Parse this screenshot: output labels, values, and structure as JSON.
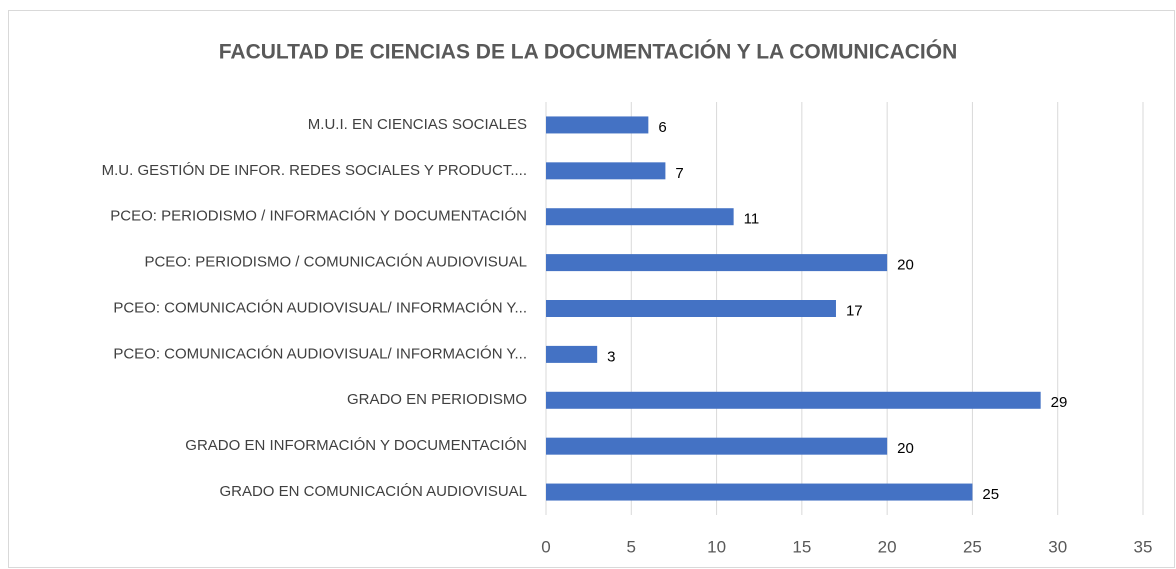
{
  "chart_data": {
    "type": "hbar",
    "title": "FACULTAD DE CIENCIAS DE LA DOCUMENTACIÓN Y LA COMUNICACIÓN",
    "categories": [
      "M.U.I. EN CIENCIAS SOCIALES",
      "M.U. GESTIÓN DE INFOR. REDES SOCIALES Y PRODUCT....",
      "PCEO: PERIODISMO / INFORMACIÓN Y DOCUMENTACIÓN",
      "PCEO: PERIODISMO / COMUNICACIÓN AUDIOVISUAL",
      "PCEO: COMUNICACIÓN AUDIOVISUAL/ INFORMACIÓN Y...",
      "PCEO: COMUNICACIÓN AUDIOVISUAL/ INFORMACIÓN Y...",
      "GRADO EN PERIODISMO",
      "GRADO EN INFORMACIÓN Y DOCUMENTACIÓN",
      "GRADO EN COMUNICACIÓN AUDIOVISUAL"
    ],
    "values": [
      6,
      7,
      11,
      20,
      17,
      3,
      29,
      20,
      25
    ],
    "color": "#4472c4",
    "xlim": [
      0,
      35
    ],
    "xticks": [
      0,
      5,
      10,
      15,
      20,
      25,
      30,
      35
    ],
    "grid": true
  }
}
